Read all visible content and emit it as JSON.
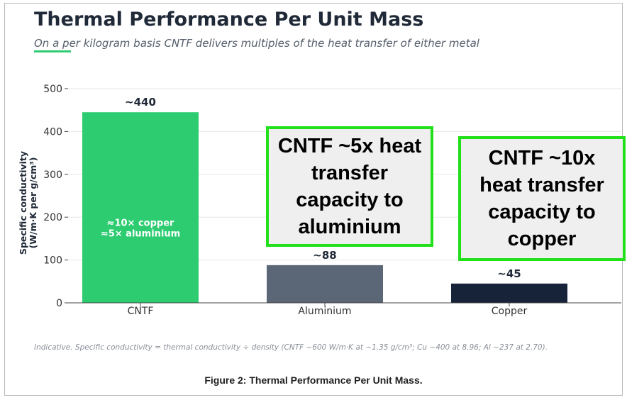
{
  "header": {
    "title": "Thermal Performance Per Unit Mass",
    "subtitle": "On a per kilogram basis CNTF delivers multiples of the heat transfer of either metal"
  },
  "chart_data": {
    "type": "bar",
    "categories": [
      "CNTF",
      "Aluminium",
      "Copper"
    ],
    "values": [
      445,
      88,
      45
    ],
    "value_labels": [
      "~440",
      "~88",
      "~45"
    ],
    "bar_colors": [
      "#2ecc71",
      "#5b6676",
      "#172338"
    ],
    "inner_label_lines": [
      "≈10× copper",
      "≈5× aluminium"
    ],
    "ylabel_lines": [
      "Specific conductivity",
      "(W/m·K per g/cm³)"
    ],
    "yticks": [
      0,
      100,
      200,
      300,
      400,
      500
    ],
    "ylim": [
      0,
      500
    ],
    "grid": true
  },
  "callouts": [
    "CNTF ~5x heat transfer capacity to aluminium",
    "CNTF ~10x heat transfer capacity to copper"
  ],
  "footnote": "Indicative. Specific conductivity = thermal conductivity ÷ density (CNTF ~600 W/m·K at ~1.35 g/cm³; Cu ~400 at 8.96; Al ~237 at 2.70).",
  "caption": "Figure 2: Thermal Performance Per Unit Mass."
}
